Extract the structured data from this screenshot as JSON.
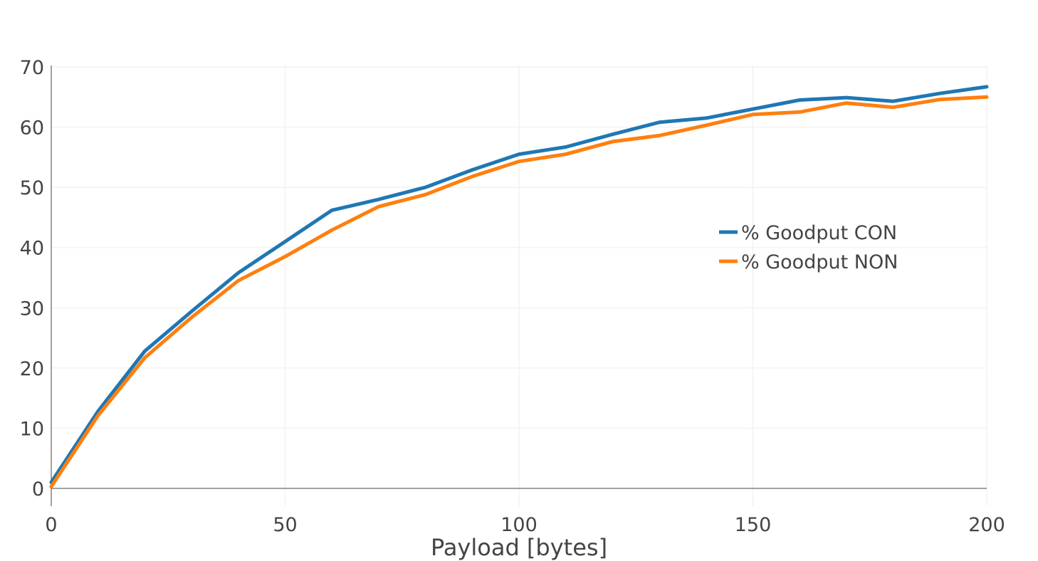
{
  "chart_data": {
    "type": "line",
    "title": "",
    "xlabel": "Payload [bytes]",
    "ylabel": "",
    "xlim": [
      0,
      200
    ],
    "ylim": [
      -3,
      70
    ],
    "xticks": [
      0,
      50,
      100,
      150,
      200
    ],
    "yticks": [
      0,
      10,
      20,
      30,
      40,
      50,
      60,
      70
    ],
    "grid": true,
    "legend_position": "center-right",
    "x": [
      0,
      10,
      20,
      30,
      40,
      50,
      60,
      70,
      80,
      90,
      100,
      110,
      120,
      130,
      140,
      150,
      160,
      170,
      180,
      190,
      200
    ],
    "series": [
      {
        "name": "% Goodput CON",
        "color": "#1f77b4",
        "values": [
          1.0,
          12.8,
          22.8,
          29.4,
          35.8,
          41.0,
          46.2,
          48.0,
          50.0,
          52.9,
          55.5,
          56.7,
          58.8,
          60.8,
          61.5,
          63.0,
          64.5,
          64.9,
          64.3,
          65.6,
          66.7
        ]
      },
      {
        "name": "% Goodput NON",
        "color": "#ff7f0e",
        "values": [
          0.3,
          12.1,
          21.7,
          28.4,
          34.5,
          38.5,
          42.9,
          46.8,
          48.8,
          51.8,
          54.3,
          55.5,
          57.6,
          58.6,
          60.3,
          62.1,
          62.5,
          64.0,
          63.3,
          64.6,
          65.0
        ]
      }
    ]
  }
}
